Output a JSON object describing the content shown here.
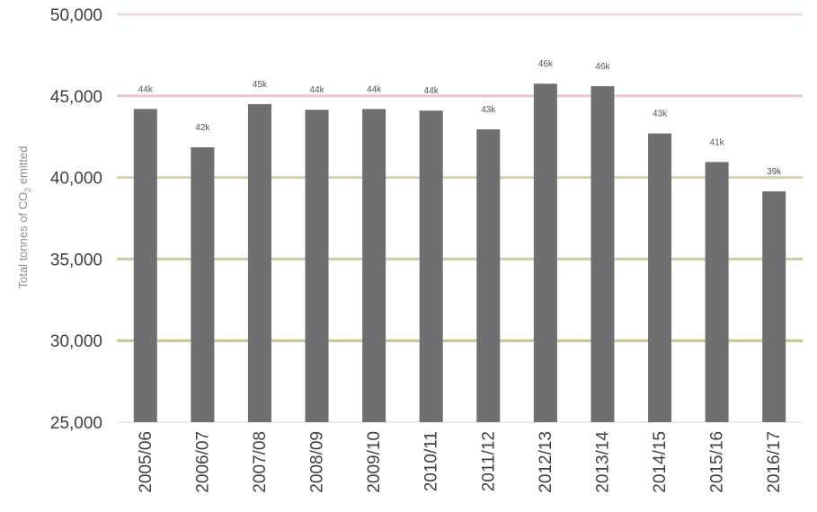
{
  "chart_data": {
    "type": "bar",
    "categories": [
      "2005/06",
      "2006/07",
      "2007/08",
      "2008/09",
      "2009/10",
      "2010/11",
      "2011/12",
      "2012/13",
      "2013/14",
      "2014/15",
      "2015/16",
      "2016/17"
    ],
    "series": [
      {
        "values": [
          44200,
          41850,
          44500,
          44150,
          44200,
          44100,
          42950,
          45750,
          45600,
          42700,
          40950,
          39150
        ],
        "data_labels": [
          "44k",
          "42k",
          "45k",
          "44k",
          "44k",
          "44k",
          "43k",
          "46k",
          "46k",
          "43k",
          "41k",
          "39k"
        ],
        "color": "#6f6f71"
      }
    ],
    "ylabel_main": "Total tonnes of CO",
    "ylabel_sub": "2",
    "ylabel_tail": " emitted",
    "ylim": [
      25000,
      50000
    ],
    "yticks": [
      25000,
      30000,
      35000,
      40000,
      45000,
      50000
    ],
    "ytick_labels": [
      "25,000",
      "30,000",
      "35,000",
      "40,000",
      "45,000",
      "50,000"
    ],
    "gridline_colors": {
      "30000": "#c9c68a",
      "35000": "#d2c99c",
      "40000": "#dccfb0",
      "45000": "#e8c8c8",
      "50000": "#f0d6dc"
    },
    "baseline_color": "#d9d9d9",
    "grid": true,
    "legend": "none"
  }
}
